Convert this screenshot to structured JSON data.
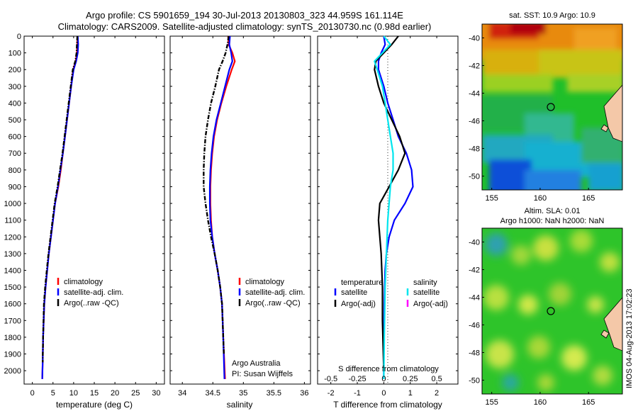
{
  "header": {
    "line1": "Argo profile: CS 5901659_194 30-Jul-2013 20130803_323 44.959S 161.114E",
    "line2": "Climatology: CARS2009. Satellite-adjusted climatology: synTS_20130730.nc (0.98d earlier)"
  },
  "watermark": "IMOS 04-Aug-2013 17:02:23",
  "chart_data": [
    {
      "type": "line",
      "panel": "temperature",
      "xlabel": "temperature (deg C)",
      "ylabel": "",
      "xlim": [
        -2,
        32
      ],
      "ylim": [
        2080,
        0
      ],
      "xticks": [
        0,
        5,
        10,
        15,
        20,
        25,
        30
      ],
      "yticks": [
        0,
        100,
        200,
        300,
        400,
        500,
        600,
        700,
        800,
        900,
        1000,
        1100,
        1200,
        1300,
        1400,
        1500,
        1600,
        1700,
        1800,
        1900,
        2000
      ],
      "legend": [
        "climatology",
        "satellite-adj. clim.",
        "Argo(..raw -QC)"
      ],
      "series": [
        {
          "name": "climatology",
          "color": "#ff0000",
          "x": [
            10.9,
            10.9,
            10.8,
            10.5,
            9.9,
            9.4,
            8.9,
            8.4,
            7.9,
            7.4,
            6.9,
            6.3,
            5.5,
            5.0,
            4.5,
            4.0,
            3.6,
            3.2,
            2.9,
            2.6,
            2.5,
            2.4
          ],
          "y": [
            0,
            50,
            100,
            150,
            200,
            300,
            400,
            500,
            600,
            700,
            800,
            900,
            1000,
            1100,
            1200,
            1300,
            1400,
            1500,
            1600,
            1800,
            1950,
            2050
          ]
        },
        {
          "name": "satellite-adj. clim.",
          "color": "#0000ff",
          "x": [
            11.0,
            11.1,
            11.0,
            10.6,
            10.0,
            9.4,
            8.9,
            8.4,
            7.9,
            7.4,
            6.8,
            6.2,
            5.5,
            5.0,
            4.5,
            4.0,
            3.6,
            3.2,
            2.9,
            2.6,
            2.5,
            2.4
          ],
          "y": [
            0,
            50,
            100,
            150,
            200,
            300,
            400,
            500,
            600,
            700,
            800,
            900,
            1000,
            1100,
            1200,
            1300,
            1400,
            1500,
            1600,
            1800,
            1950,
            2050
          ]
        },
        {
          "name": "Argo(..raw -QC)",
          "color": "#000000",
          "x": [
            10.9,
            10.8,
            10.7,
            10.4,
            9.8,
            9.3,
            8.8,
            8.3,
            7.8,
            7.3,
            6.7,
            6.1,
            5.4,
            4.9,
            4.4,
            3.9,
            3.5,
            3.1,
            2.8,
            2.6,
            2.5
          ],
          "y": [
            0,
            50,
            100,
            150,
            200,
            300,
            400,
            500,
            600,
            700,
            800,
            900,
            1000,
            1100,
            1200,
            1300,
            1400,
            1500,
            1600,
            1800,
            1950
          ]
        }
      ]
    },
    {
      "type": "line",
      "panel": "salinity",
      "xlabel": "salinity",
      "ylabel": "",
      "xlim": [
        33.8,
        36.1
      ],
      "ylim": [
        2080,
        0
      ],
      "xticks": [
        34,
        34.5,
        35,
        35.5,
        36
      ],
      "xticklabels": [
        "34",
        "34.5",
        "35",
        "35.5",
        "36"
      ],
      "legend": [
        "climatology",
        "satellite-adj. clim.",
        "Argo(..raw -QC)"
      ],
      "annotation": [
        "Argo Australia",
        "PI: Susan Wijffels"
      ],
      "series": [
        {
          "name": "climatology",
          "color": "#ff0000",
          "x": [
            34.75,
            34.76,
            34.82,
            34.86,
            34.81,
            34.72,
            34.64,
            34.57,
            34.52,
            34.49,
            34.47,
            34.46,
            34.46,
            34.47,
            34.49,
            34.53,
            34.58,
            34.62,
            34.65,
            34.67,
            34.7
          ],
          "y": [
            0,
            50,
            100,
            150,
            200,
            300,
            400,
            500,
            600,
            700,
            800,
            900,
            1000,
            1100,
            1200,
            1300,
            1400,
            1500,
            1600,
            1800,
            2050
          ]
        },
        {
          "name": "satellite-adj. clim.",
          "color": "#0000ff",
          "x": [
            34.78,
            34.77,
            34.8,
            34.82,
            34.77,
            34.7,
            34.63,
            34.56,
            34.51,
            34.48,
            34.46,
            34.45,
            34.45,
            34.46,
            34.49,
            34.53,
            34.58,
            34.62,
            34.65,
            34.67,
            34.69
          ],
          "y": [
            0,
            50,
            100,
            150,
            200,
            300,
            400,
            500,
            600,
            700,
            800,
            900,
            1000,
            1100,
            1200,
            1300,
            1400,
            1500,
            1600,
            1800,
            2050
          ]
        },
        {
          "name": "Argo(..raw -QC)",
          "color": "#000000",
          "x": [
            34.76,
            34.74,
            34.71,
            34.66,
            34.6,
            34.54,
            34.47,
            34.42,
            34.38,
            34.36,
            34.35,
            34.35,
            34.38,
            34.42,
            34.47,
            34.53,
            34.58,
            34.62,
            34.65,
            34.68
          ],
          "y": [
            0,
            50,
            100,
            150,
            200,
            300,
            400,
            500,
            600,
            700,
            800,
            900,
            1000,
            1100,
            1200,
            1300,
            1400,
            1500,
            1600,
            1900
          ]
        }
      ]
    },
    {
      "type": "line",
      "panel": "difference",
      "xlabel": "T difference from climatology",
      "top_xlabel": "S difference from climatology",
      "xlim": [
        -2.5,
        2.8
      ],
      "ylim": [
        2080,
        0
      ],
      "xticks": [
        -2,
        -1,
        0,
        1,
        2
      ],
      "top_ticks": [
        "-0.5",
        "-0.25",
        "0",
        "0.25",
        "0.5"
      ],
      "legend_titles": [
        "temperature",
        "salinity"
      ],
      "legend": [
        "satellite",
        "Argo(-adj)",
        "satellite",
        "Argo(-adj)"
      ],
      "series": [
        {
          "name": "satellite",
          "color": "#0000ff",
          "x": [
            0.0,
            0.05,
            -0.1,
            -0.2,
            -0.2,
            0.0,
            0.15,
            0.35,
            0.55,
            0.85,
            1.05,
            1.1,
            0.8,
            0.4,
            0.2,
            0.1,
            0.05,
            0.02,
            0.0,
            0.0
          ],
          "y": [
            0,
            50,
            100,
            150,
            200,
            300,
            400,
            500,
            600,
            700,
            800,
            900,
            1000,
            1100,
            1200,
            1300,
            1400,
            1600,
            1800,
            2050
          ]
        },
        {
          "name": "Argo(-adj)",
          "color": "#000000",
          "x": [
            0.55,
            0.3,
            0.0,
            -0.3,
            -0.35,
            -0.2,
            0.0,
            0.3,
            0.6,
            0.8,
            0.55,
            0.2,
            -0.15,
            -0.2,
            -0.1,
            -0.05,
            -0.05,
            0.0
          ],
          "y": [
            0,
            50,
            100,
            150,
            200,
            300,
            400,
            500,
            600,
            700,
            800,
            900,
            1000,
            1100,
            1300,
            1500,
            1700,
            2000
          ]
        },
        {
          "name": "salinity satellite",
          "color": "#00e5ee",
          "x": [
            0.0,
            0.25,
            -0.05,
            -0.35,
            -0.25,
            -0.05,
            0.05,
            0.15,
            0.25,
            0.35,
            0.35,
            0.25,
            0.15,
            0.1,
            0.05,
            0.02,
            0.0
          ],
          "y": [
            0,
            50,
            100,
            150,
            200,
            300,
            400,
            500,
            600,
            700,
            800,
            900,
            1100,
            1300,
            1500,
            1800,
            2050
          ]
        }
      ]
    },
    {
      "type": "heatmap",
      "panel": "sst-map",
      "title": "sat. SST: 10.9 Argo: 10.9",
      "xticks": [
        155,
        160,
        165
      ],
      "yticks": [
        -40,
        -42,
        -44,
        -46,
        -48,
        -50
      ],
      "xlim": [
        154,
        168.5
      ],
      "ylim": [
        -39,
        -51
      ],
      "marker": [
        161.1,
        -45.0
      ]
    },
    {
      "type": "heatmap",
      "panel": "sla-map",
      "title": "Altim. SLA: 0.01",
      "subtitle": "Argo h1000: NaN h2000: NaN",
      "xticks": [
        155,
        160,
        165
      ],
      "yticks": [
        -40,
        -42,
        -44,
        -46,
        -48,
        -50
      ],
      "xlim": [
        154,
        168.5
      ],
      "ylim": [
        -39,
        -51
      ],
      "marker": [
        161.1,
        -45.0
      ]
    }
  ]
}
